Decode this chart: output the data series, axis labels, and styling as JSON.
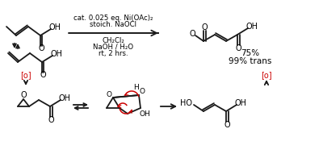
{
  "fig_width": 4.0,
  "fig_height": 1.96,
  "dpi": 100,
  "bg_color": "#ffffff",
  "line_color": "#1a1a1a",
  "red_color": "#cc0000",
  "reaction_conditions": [
    "cat. 0.025 eq. Ni(OAc)₂",
    "stoich. NaOCl",
    "CH₂Cl₂",
    "NaOH / H₂O",
    "rt, 2 hrs."
  ],
  "yield_text": "75%",
  "trans_text": "99% trans"
}
